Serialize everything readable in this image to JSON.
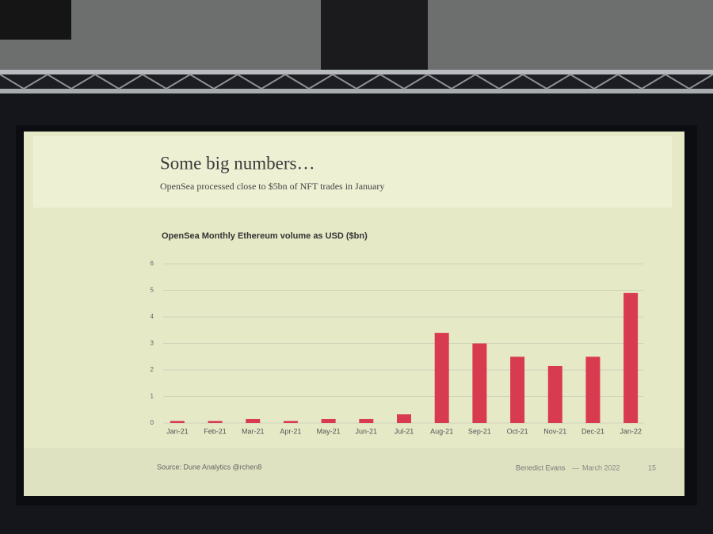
{
  "slide": {
    "title": "Some big numbers…",
    "subtitle": "OpenSea processed close to $5bn of NFT trades in January"
  },
  "footer": {
    "source": "Source: Dune Analytics @rchen8",
    "author": "Benedict Evans",
    "separator": "—",
    "date": "March 2022",
    "page": "15"
  },
  "chart_data": {
    "type": "bar",
    "title": "OpenSea Monthly Ethereum volume as USD ($bn)",
    "categories": [
      "Jan-21",
      "Feb-21",
      "Mar-21",
      "Apr-21",
      "May-21",
      "Jun-21",
      "Jul-21",
      "Aug-21",
      "Sep-21",
      "Oct-21",
      "Nov-21",
      "Dec-21",
      "Jan-22"
    ],
    "values": [
      0.08,
      0.08,
      0.15,
      0.08,
      0.15,
      0.15,
      0.33,
      3.4,
      3.0,
      2.5,
      2.15,
      2.5,
      4.9
    ],
    "color": "#d83a50",
    "ylim": [
      0,
      6
    ],
    "yticks": [
      0,
      1,
      2,
      3,
      4,
      5,
      6
    ],
    "grid": true
  }
}
